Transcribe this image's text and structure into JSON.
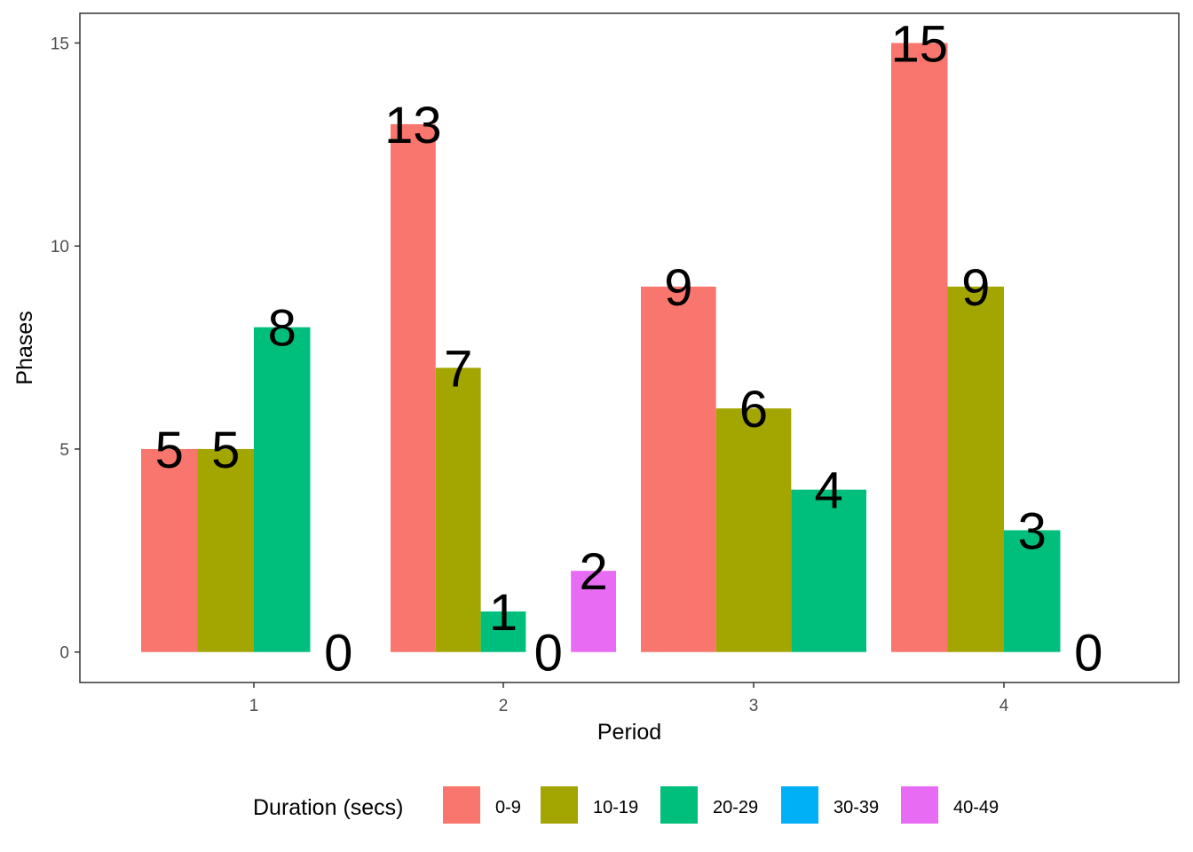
{
  "chart_data": {
    "type": "bar",
    "xlabel": "Period",
    "ylabel": "Phases",
    "categories": [
      "1",
      "2",
      "3",
      "4"
    ],
    "ylim": [
      -0.7,
      15.7
    ],
    "yticks": [
      0,
      5,
      10,
      15
    ],
    "grid": false,
    "legend": {
      "title": "Duration (secs)",
      "position": "bottom"
    },
    "series": [
      {
        "name": "0-9",
        "color": "#F8766D",
        "values": [
          5,
          13,
          9,
          15
        ]
      },
      {
        "name": "10-19",
        "color": "#A3A500",
        "values": [
          5,
          7,
          6,
          9
        ]
      },
      {
        "name": "20-29",
        "color": "#00BF7D",
        "values": [
          8,
          1,
          4,
          3
        ]
      },
      {
        "name": "30-39",
        "color": "#00B0F6",
        "values": [
          0,
          0,
          null,
          0
        ]
      },
      {
        "name": "40-49",
        "color": "#E76BF3",
        "values": [
          null,
          2,
          null,
          null
        ]
      }
    ]
  }
}
